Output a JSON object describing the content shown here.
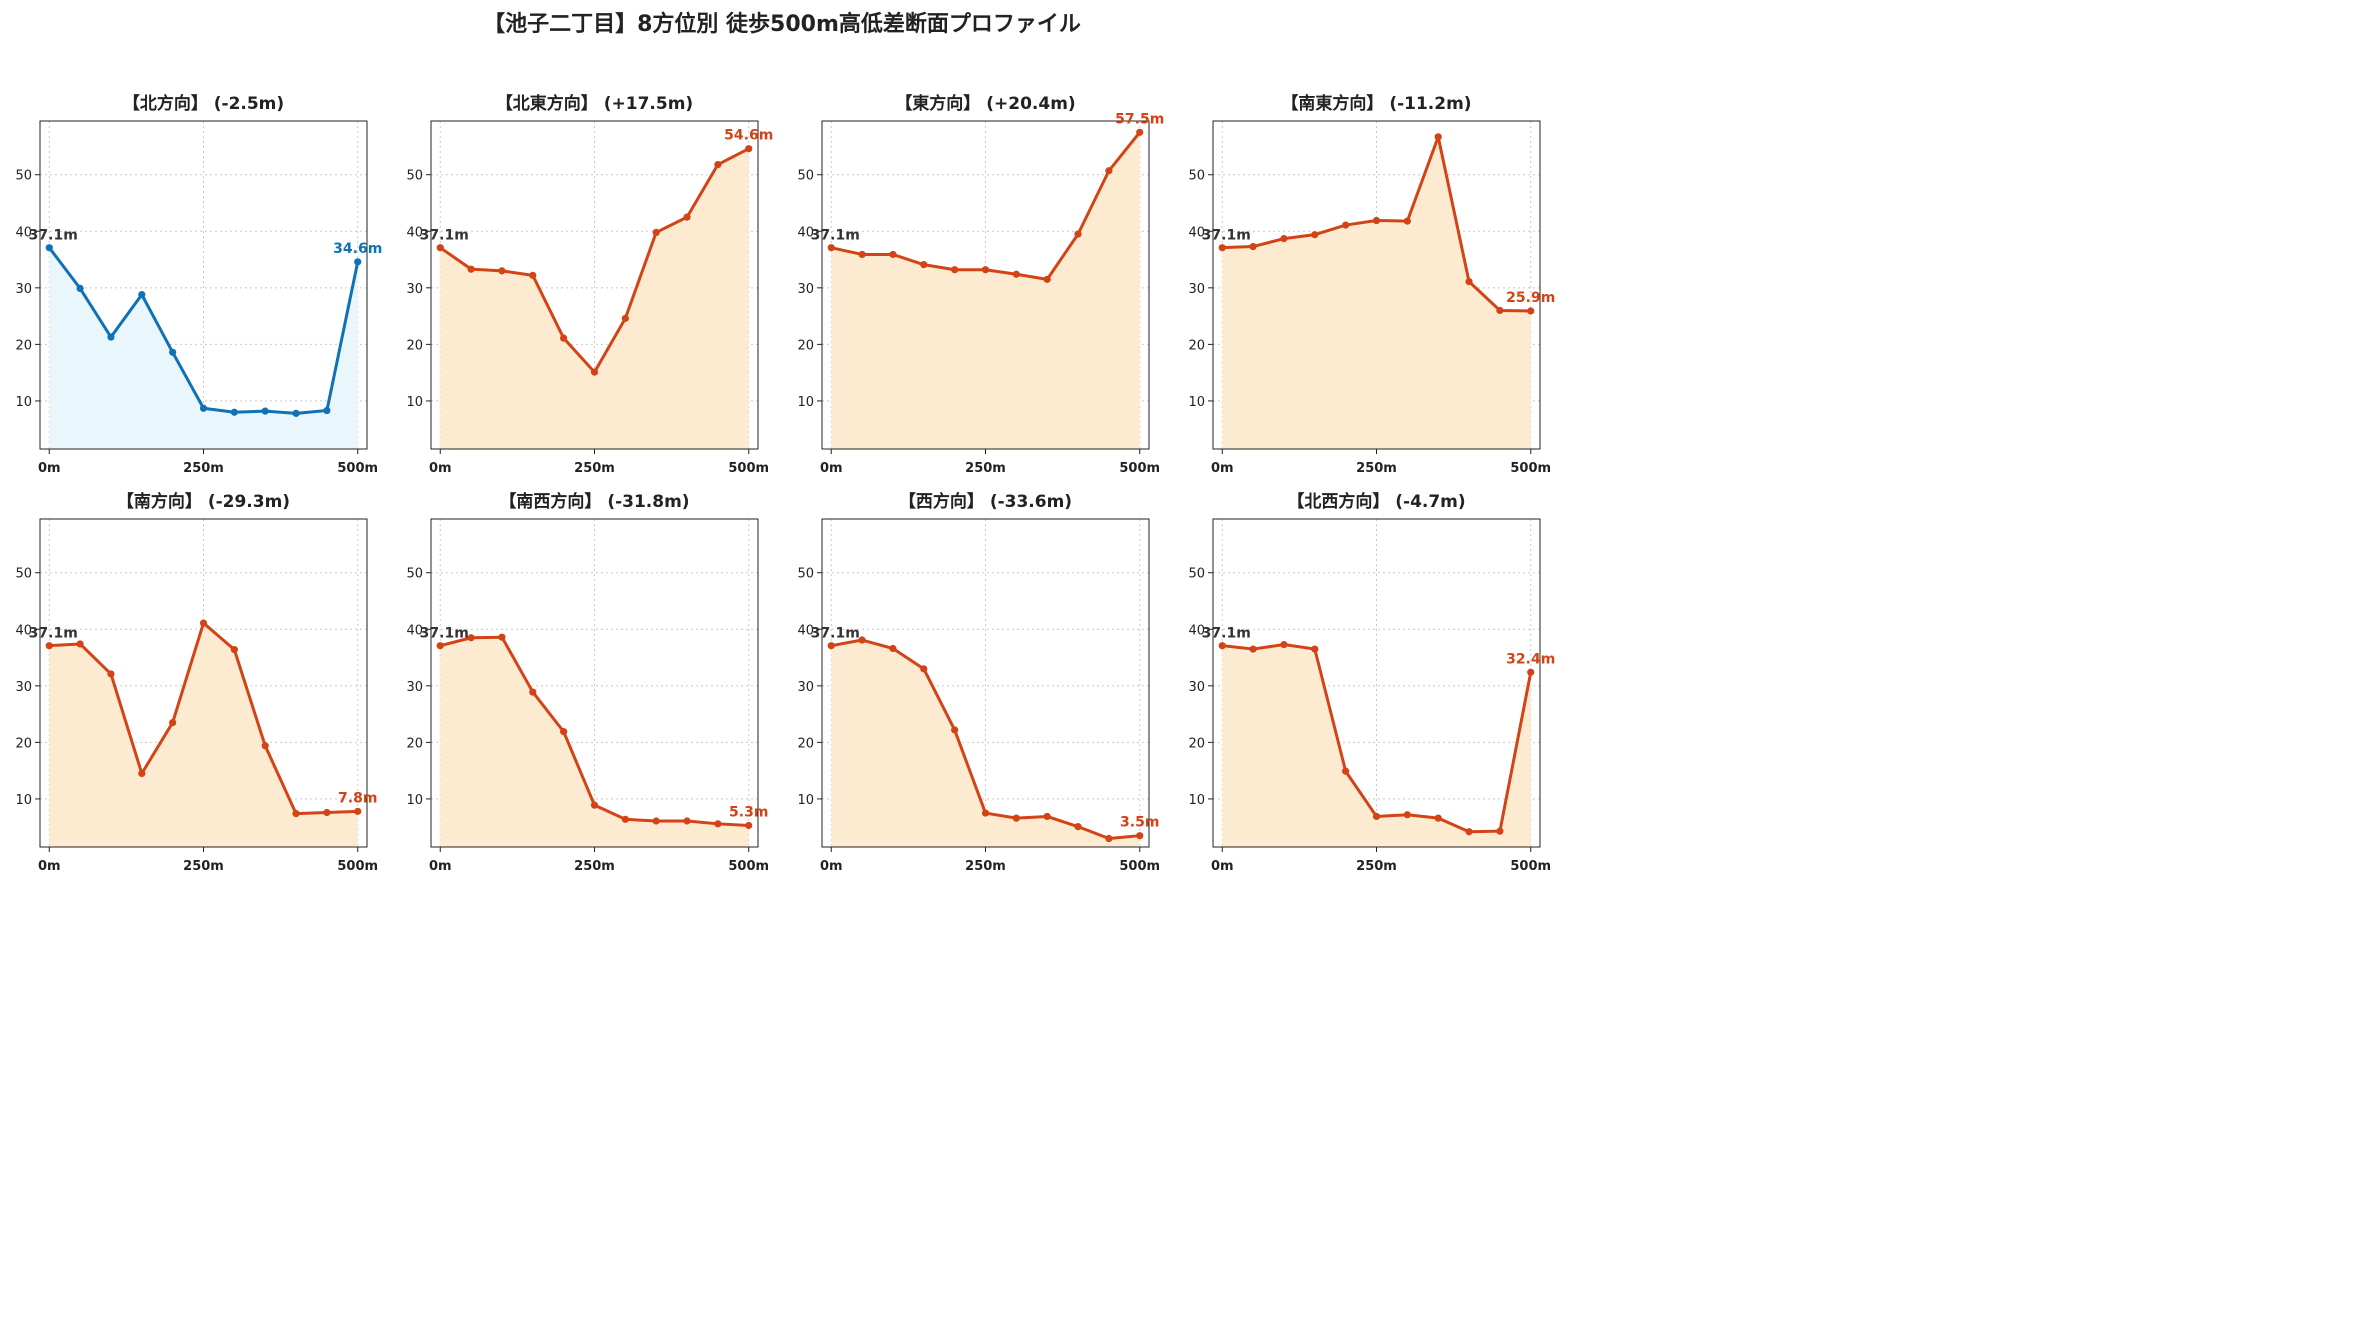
{
  "title": "【池子二丁目】8方位別 徒歩500m高低差断面プロファイル",
  "chart_data": [
    {
      "type": "area",
      "title": "【北方向】 (-2.5m)",
      "x": [
        0,
        50,
        100,
        150,
        200,
        250,
        300,
        350,
        400,
        450,
        500
      ],
      "values": [
        37.1,
        29.9,
        21.3,
        28.8,
        18.6,
        8.7,
        8.0,
        8.2,
        7.8,
        8.3,
        34.6
      ],
      "start_label": "37.1m",
      "end_label": "34.6m",
      "color": "#0f72b6",
      "fill": "#e9f6fc",
      "x_ticks": [
        "0m",
        "250m",
        "500m"
      ],
      "y_ticks": [
        "10",
        "20",
        "30",
        "40",
        "50"
      ],
      "xlim": [
        -15,
        515
      ],
      "ylim": [
        1.5,
        59.5
      ],
      "grid": true
    },
    {
      "type": "area",
      "title": "【北東方向】 (+17.5m)",
      "x": [
        0,
        50,
        100,
        150,
        200,
        250,
        300,
        350,
        400,
        450,
        500
      ],
      "values": [
        37.1,
        33.3,
        33.0,
        32.2,
        21.1,
        15.1,
        24.6,
        39.8,
        42.5,
        51.8,
        54.6
      ],
      "start_label": "37.1m",
      "end_label": "54.6m",
      "color": "#d34316",
      "fill": "#fdebd1",
      "x_ticks": [
        "0m",
        "250m",
        "500m"
      ],
      "y_ticks": [
        "10",
        "20",
        "30",
        "40",
        "50"
      ],
      "xlim": [
        -15,
        515
      ],
      "ylim": [
        1.5,
        59.5
      ],
      "grid": true
    },
    {
      "type": "area",
      "title": "【東方向】 (+20.4m)",
      "x": [
        0,
        50,
        100,
        150,
        200,
        250,
        300,
        350,
        400,
        450,
        500
      ],
      "values": [
        37.1,
        35.9,
        35.9,
        34.1,
        33.2,
        33.2,
        32.4,
        31.5,
        39.5,
        50.7,
        57.5
      ],
      "start_label": "37.1m",
      "end_label": "57.5m",
      "color": "#d34316",
      "fill": "#fdebd1",
      "x_ticks": [
        "0m",
        "250m",
        "500m"
      ],
      "y_ticks": [
        "10",
        "20",
        "30",
        "40",
        "50"
      ],
      "xlim": [
        -15,
        515
      ],
      "ylim": [
        1.5,
        59.5
      ],
      "grid": true
    },
    {
      "type": "area",
      "title": "【南東方向】 (-11.2m)",
      "x": [
        0,
        50,
        100,
        150,
        200,
        250,
        300,
        350,
        400,
        450,
        500
      ],
      "values": [
        37.1,
        37.3,
        38.7,
        39.4,
        41.1,
        41.9,
        41.8,
        56.7,
        31.1,
        26.0,
        25.9
      ],
      "start_label": "37.1m",
      "end_label": "25.9m",
      "color": "#d34316",
      "fill": "#fdebd1",
      "x_ticks": [
        "0m",
        "250m",
        "500m"
      ],
      "y_ticks": [
        "10",
        "20",
        "30",
        "40",
        "50"
      ],
      "xlim": [
        -15,
        515
      ],
      "ylim": [
        1.5,
        59.5
      ],
      "grid": true
    },
    {
      "type": "area",
      "title": "【南方向】 (-29.3m)",
      "x": [
        0,
        50,
        100,
        150,
        200,
        250,
        300,
        350,
        400,
        450,
        500
      ],
      "values": [
        37.1,
        37.4,
        32.1,
        14.5,
        23.5,
        41.1,
        36.4,
        19.4,
        7.4,
        7.6,
        7.8
      ],
      "start_label": "37.1m",
      "end_label": "7.8m",
      "color": "#d34316",
      "fill": "#fdebd1",
      "x_ticks": [
        "0m",
        "250m",
        "500m"
      ],
      "y_ticks": [
        "10",
        "20",
        "30",
        "40",
        "50"
      ],
      "xlim": [
        -15,
        515
      ],
      "ylim": [
        1.5,
        59.5
      ],
      "grid": true
    },
    {
      "type": "area",
      "title": "【南西方向】 (-31.8m)",
      "x": [
        0,
        50,
        100,
        150,
        200,
        250,
        300,
        350,
        400,
        450,
        500
      ],
      "values": [
        37.1,
        38.5,
        38.6,
        28.9,
        21.9,
        8.9,
        6.4,
        6.1,
        6.1,
        5.6,
        5.3
      ],
      "start_label": "37.1m",
      "end_label": "5.3m",
      "color": "#d34316",
      "fill": "#fdebd1",
      "x_ticks": [
        "0m",
        "250m",
        "500m"
      ],
      "y_ticks": [
        "10",
        "20",
        "30",
        "40",
        "50"
      ],
      "xlim": [
        -15,
        515
      ],
      "ylim": [
        1.5,
        59.5
      ],
      "grid": true
    },
    {
      "type": "area",
      "title": "【西方向】 (-33.6m)",
      "x": [
        0,
        50,
        100,
        150,
        200,
        250,
        300,
        350,
        400,
        450,
        500
      ],
      "values": [
        37.1,
        38.1,
        36.6,
        33.0,
        22.2,
        7.5,
        6.6,
        6.9,
        5.1,
        3.0,
        3.5
      ],
      "start_label": "37.1m",
      "end_label": "3.5m",
      "color": "#d34316",
      "fill": "#fdebd1",
      "x_ticks": [
        "0m",
        "250m",
        "500m"
      ],
      "y_ticks": [
        "10",
        "20",
        "30",
        "40",
        "50"
      ],
      "xlim": [
        -15,
        515
      ],
      "ylim": [
        1.5,
        59.5
      ],
      "grid": true
    },
    {
      "type": "area",
      "title": "【北西方向】 (-4.7m)",
      "x": [
        0,
        50,
        100,
        150,
        200,
        250,
        300,
        350,
        400,
        450,
        500
      ],
      "values": [
        37.1,
        36.5,
        37.3,
        36.5,
        14.9,
        6.9,
        7.2,
        6.6,
        4.2,
        4.3,
        32.4
      ],
      "start_label": "37.1m",
      "end_label": "32.4m",
      "color": "#d34316",
      "fill": "#fdebd1",
      "x_ticks": [
        "0m",
        "250m",
        "500m"
      ],
      "y_ticks": [
        "10",
        "20",
        "30",
        "40",
        "50"
      ],
      "xlim": [
        -15,
        515
      ],
      "ylim": [
        1.5,
        59.5
      ],
      "grid": true
    }
  ]
}
